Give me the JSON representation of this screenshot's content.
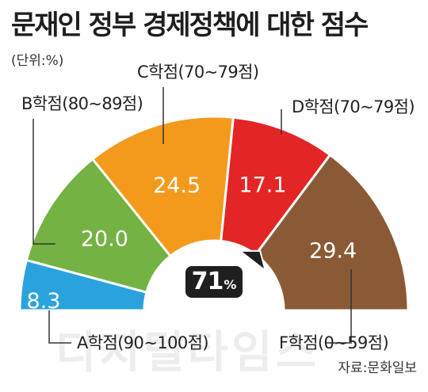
{
  "title": "문재인 정부 경제정책에 대한 점수",
  "unit": "(단위:%)",
  "source": "자료:문화일보",
  "watermark": "디지털타임스",
  "overall_score": {
    "value": "71",
    "unit": "%"
  },
  "chart_data": {
    "type": "pie",
    "shape": "half-donut gauge",
    "categories": [
      "A학점(90~100점)",
      "B학점(80~89점)",
      "C학점(70~79점)",
      "D학점(70~79점)",
      "F학점(0~59점)"
    ],
    "values": [
      8.3,
      20.0,
      24.5,
      17.1,
      29.4
    ],
    "value_labels": [
      "8.3",
      "20.0",
      "24.5",
      "17.1",
      "29.4"
    ],
    "colors": [
      "#2aa3dc",
      "#74b243",
      "#f39a1d",
      "#e32525",
      "#8a5a36"
    ],
    "unit": "%",
    "needle_value": 71
  }
}
